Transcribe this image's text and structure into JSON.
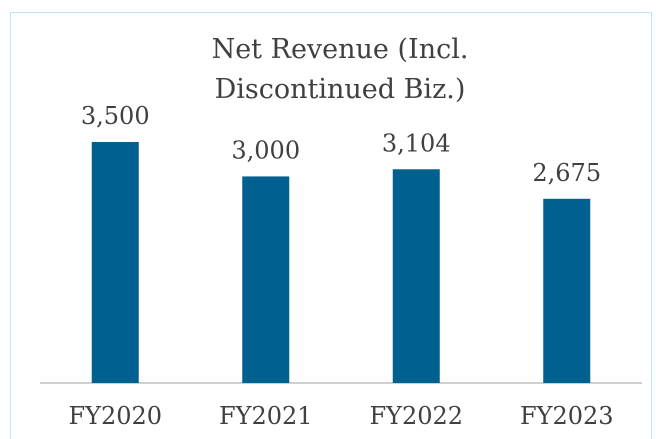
{
  "chart_data": {
    "type": "bar",
    "title": "Net Revenue (Incl. Discontinued Biz.)",
    "categories": [
      "FY2020",
      "FY2021",
      "FY2022",
      "FY2023"
    ],
    "values": [
      3500,
      3000,
      3104,
      2675
    ],
    "value_labels": [
      "3,500",
      "3,000",
      "3,104",
      "2,675"
    ],
    "color": "#00608f"
  }
}
